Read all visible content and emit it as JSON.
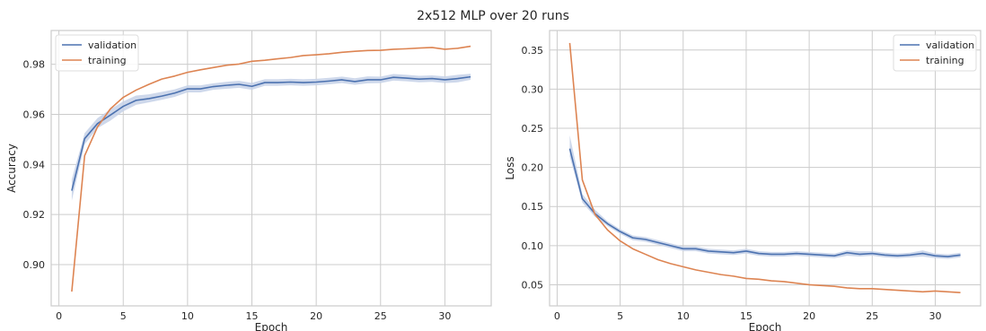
{
  "figure": {
    "title": "2x512 MLP over 20 runs"
  },
  "colors": {
    "validation": "#4c72b0",
    "training": "#dd8452",
    "grid": "#cccccc",
    "band": "#c6d1e8"
  },
  "chart_data": [
    {
      "type": "line",
      "title": "",
      "xlabel": "Epoch",
      "ylabel": "Accuracy",
      "xlim": [
        -0.6,
        33.6
      ],
      "ylim": [
        0.8835,
        0.9935
      ],
      "xticks": [
        0,
        5,
        10,
        15,
        20,
        25,
        30
      ],
      "xtick_labels": [
        "0",
        "5",
        "10",
        "15",
        "20",
        "25",
        "30"
      ],
      "yticks": [
        0.9,
        0.92,
        0.94,
        0.96,
        0.98
      ],
      "ytick_labels": [
        "0.90",
        "0.92",
        "0.94",
        "0.96",
        "0.98"
      ],
      "grid": true,
      "legend_position": "top-left",
      "x": [
        1,
        2,
        3,
        4,
        5,
        6,
        7,
        8,
        9,
        10,
        11,
        12,
        13,
        14,
        15,
        16,
        17,
        18,
        19,
        20,
        21,
        22,
        23,
        24,
        25,
        26,
        27,
        28,
        29,
        30,
        31,
        32
      ],
      "series": [
        {
          "name": "validation",
          "color_key": "validation",
          "values": [
            0.9295,
            0.9503,
            0.9563,
            0.9597,
            0.9632,
            0.9656,
            0.9663,
            0.9673,
            0.9685,
            0.9702,
            0.9702,
            0.9711,
            0.9716,
            0.972,
            0.9712,
            0.9727,
            0.9727,
            0.9729,
            0.9727,
            0.9729,
            0.9733,
            0.9738,
            0.9731,
            0.9738,
            0.9738,
            0.9748,
            0.9745,
            0.9741,
            0.9743,
            0.9738,
            0.9743,
            0.975
          ],
          "band_low": [
            0.9255,
            0.948,
            0.9545,
            0.9575,
            0.9612,
            0.9638,
            0.9648,
            0.9658,
            0.967,
            0.9688,
            0.9688,
            0.9698,
            0.9702,
            0.9706,
            0.9698,
            0.9714,
            0.9714,
            0.9716,
            0.9714,
            0.9716,
            0.972,
            0.9725,
            0.9718,
            0.9724,
            0.9725,
            0.9735,
            0.9732,
            0.9728,
            0.973,
            0.9725,
            0.9728,
            0.9738
          ],
          "band_high": [
            0.934,
            0.9525,
            0.9585,
            0.962,
            0.9652,
            0.9675,
            0.968,
            0.969,
            0.97,
            0.9716,
            0.9716,
            0.9724,
            0.973,
            0.9734,
            0.9726,
            0.974,
            0.974,
            0.9742,
            0.974,
            0.9742,
            0.9746,
            0.9751,
            0.9744,
            0.9752,
            0.9751,
            0.9761,
            0.9758,
            0.9754,
            0.9756,
            0.9752,
            0.9758,
            0.9762
          ]
        },
        {
          "name": "training",
          "color_key": "training",
          "values": [
            0.8892,
            0.9435,
            0.955,
            0.9622,
            0.9668,
            0.9697,
            0.972,
            0.9741,
            0.9753,
            0.9768,
            0.9778,
            0.9787,
            0.9796,
            0.9801,
            0.9812,
            0.9816,
            0.9822,
            0.9827,
            0.9835,
            0.9838,
            0.9842,
            0.9848,
            0.9852,
            0.9855,
            0.9856,
            0.986,
            0.9862,
            0.9865,
            0.9867,
            0.986,
            0.9864,
            0.9872
          ]
        }
      ]
    },
    {
      "type": "line",
      "title": "",
      "xlabel": "Epoch",
      "ylabel": "Loss",
      "xlim": [
        -0.6,
        33.6
      ],
      "ylim": [
        0.023,
        0.375
      ],
      "xticks": [
        0,
        5,
        10,
        15,
        20,
        25,
        30
      ],
      "xtick_labels": [
        "0",
        "5",
        "10",
        "15",
        "20",
        "25",
        "30"
      ],
      "yticks": [
        0.05,
        0.1,
        0.15,
        0.2,
        0.25,
        0.3,
        0.35
      ],
      "ytick_labels": [
        "0.05",
        "0.10",
        "0.15",
        "0.20",
        "0.25",
        "0.30",
        "0.35"
      ],
      "grid": true,
      "legend_position": "top-right",
      "x": [
        1,
        2,
        3,
        4,
        5,
        6,
        7,
        8,
        9,
        10,
        11,
        12,
        13,
        14,
        15,
        16,
        17,
        18,
        19,
        20,
        21,
        22,
        23,
        24,
        25,
        26,
        27,
        28,
        29,
        30,
        31,
        32
      ],
      "series": [
        {
          "name": "validation",
          "color_key": "validation",
          "values": [
            0.224,
            0.16,
            0.141,
            0.128,
            0.118,
            0.11,
            0.108,
            0.104,
            0.1,
            0.096,
            0.096,
            0.093,
            0.092,
            0.091,
            0.093,
            0.09,
            0.089,
            0.089,
            0.09,
            0.089,
            0.088,
            0.087,
            0.091,
            0.089,
            0.09,
            0.088,
            0.087,
            0.088,
            0.09,
            0.087,
            0.086,
            0.088
          ],
          "band_low": [
            0.214,
            0.155,
            0.137,
            0.125,
            0.115,
            0.107,
            0.105,
            0.101,
            0.097,
            0.093,
            0.093,
            0.09,
            0.089,
            0.088,
            0.09,
            0.087,
            0.086,
            0.086,
            0.087,
            0.086,
            0.085,
            0.084,
            0.087,
            0.086,
            0.087,
            0.085,
            0.084,
            0.085,
            0.086,
            0.084,
            0.083,
            0.085
          ],
          "band_high": [
            0.241,
            0.166,
            0.146,
            0.131,
            0.121,
            0.113,
            0.111,
            0.107,
            0.103,
            0.099,
            0.099,
            0.096,
            0.095,
            0.094,
            0.096,
            0.093,
            0.092,
            0.092,
            0.093,
            0.092,
            0.091,
            0.09,
            0.094,
            0.093,
            0.093,
            0.091,
            0.09,
            0.091,
            0.094,
            0.09,
            0.089,
            0.091
          ]
        },
        {
          "name": "training",
          "color_key": "training",
          "values": [
            0.359,
            0.184,
            0.14,
            0.12,
            0.106,
            0.096,
            0.089,
            0.082,
            0.077,
            0.073,
            0.069,
            0.066,
            0.063,
            0.061,
            0.058,
            0.057,
            0.055,
            0.054,
            0.052,
            0.05,
            0.049,
            0.048,
            0.046,
            0.045,
            0.045,
            0.044,
            0.043,
            0.042,
            0.041,
            0.042,
            0.041,
            0.04
          ]
        }
      ]
    }
  ]
}
